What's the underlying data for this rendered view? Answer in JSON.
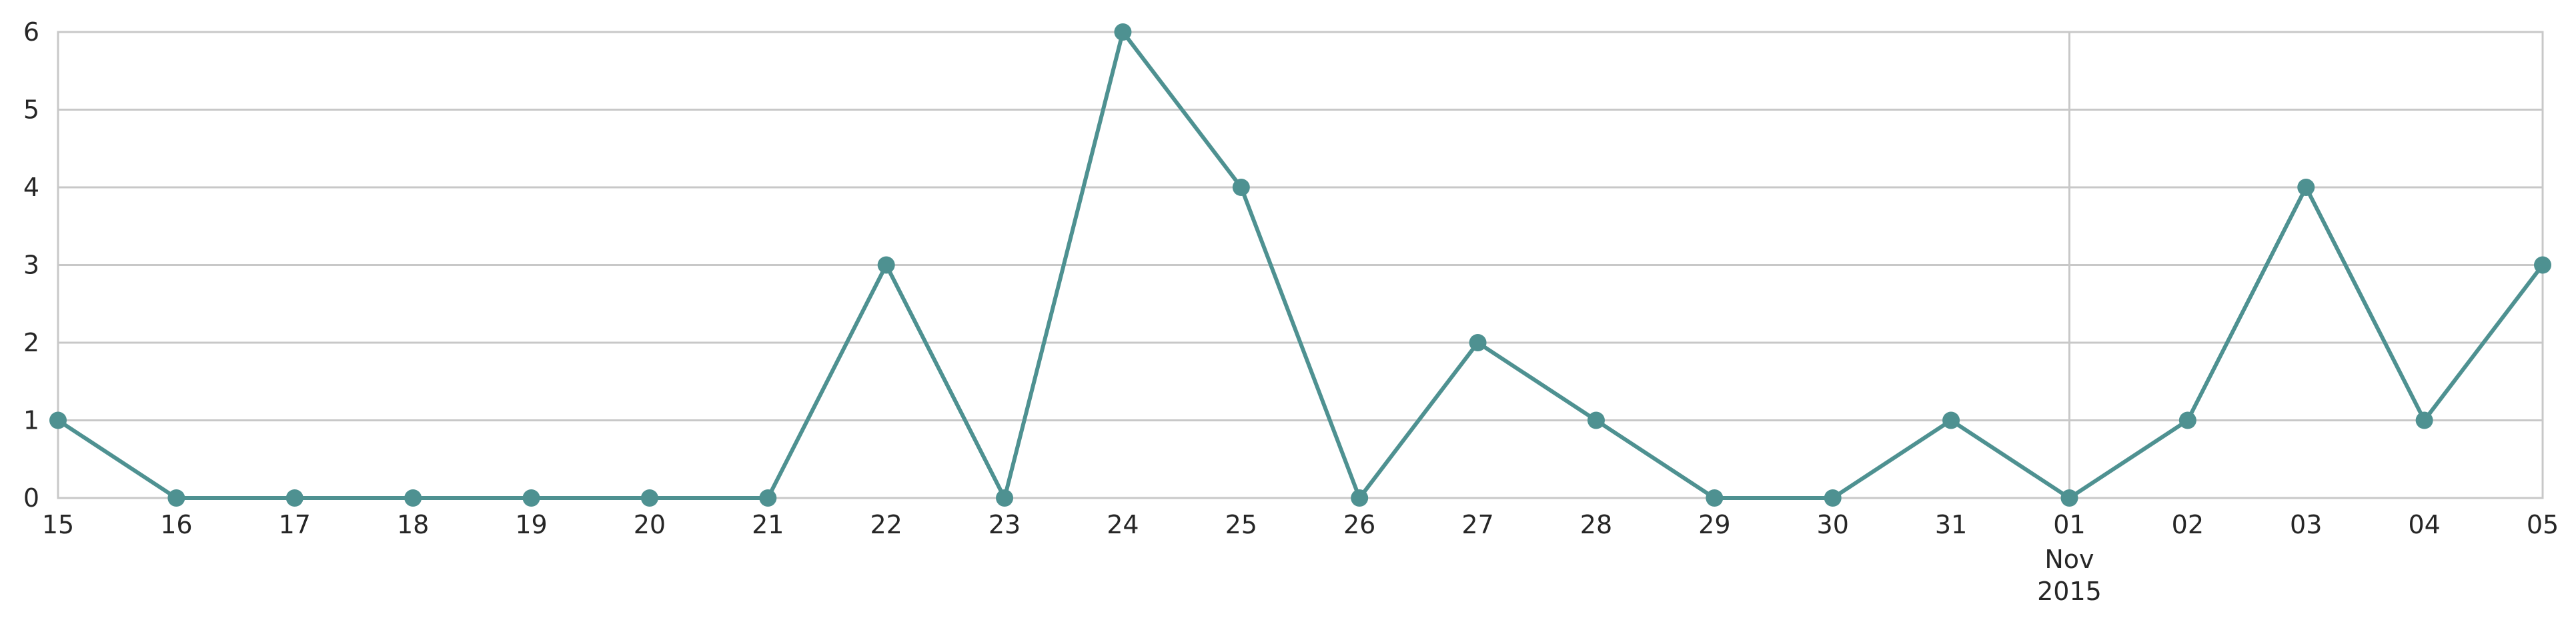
{
  "chart_data": {
    "type": "line",
    "title": "",
    "xlabel": "",
    "ylabel": "",
    "x": [
      "2015-10-15",
      "2015-10-16",
      "2015-10-17",
      "2015-10-18",
      "2015-10-19",
      "2015-10-20",
      "2015-10-21",
      "2015-10-22",
      "2015-10-23",
      "2015-10-24",
      "2015-10-25",
      "2015-10-26",
      "2015-10-27",
      "2015-10-28",
      "2015-10-29",
      "2015-10-30",
      "2015-10-31",
      "2015-11-01",
      "2015-11-02",
      "2015-11-03",
      "2015-11-04",
      "2015-11-05"
    ],
    "x_tick_labels": [
      "15",
      "16",
      "17",
      "18",
      "19",
      "20",
      "21",
      "22",
      "23",
      "24",
      "25",
      "26",
      "27",
      "28",
      "29",
      "30",
      "31",
      "01",
      "02",
      "03",
      "04",
      "05"
    ],
    "x_month_label": "Nov",
    "x_year_label": "2015",
    "series": [
      {
        "values": [
          1,
          0,
          0,
          0,
          0,
          0,
          0,
          3,
          0,
          6,
          4,
          0,
          2,
          1,
          0,
          0,
          1,
          0,
          1,
          4,
          1,
          3
        ],
        "color": "#4e9191"
      }
    ],
    "ylim": [
      0,
      6
    ],
    "y_ticks": [
      "0",
      "1",
      "2",
      "3",
      "4",
      "5",
      "6"
    ],
    "grid": true,
    "legend": "none",
    "colors": {
      "grid": "#c8c8c8",
      "axes_edge": "#c8c8c8",
      "text": "#262626"
    }
  }
}
